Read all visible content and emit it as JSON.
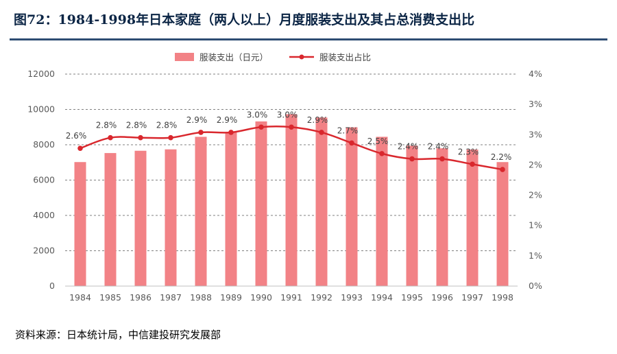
{
  "page": {
    "title": "图72：1984-1998年日本家庭（两人以上）月度服装支出及其占总消费支出比",
    "source": "资料来源：日本统计局，中信建投研究发展部"
  },
  "colors": {
    "bar": "#f28286",
    "line": "#d9272d",
    "grid": "#7f7f7f",
    "title": "#0b2545"
  },
  "chart_data": {
    "type": "bar+line",
    "title": "1984-1998年日本家庭（两人以上）月度服装支出及其占总消费支出比",
    "categories": [
      "1984",
      "1985",
      "1986",
      "1987",
      "1988",
      "1989",
      "1990",
      "1991",
      "1992",
      "1993",
      "1994",
      "1995",
      "1996",
      "1997",
      "1998"
    ],
    "series": [
      {
        "name": "服装支出（日元）",
        "type": "bar",
        "axis": "left",
        "values": [
          7020,
          7530,
          7660,
          7740,
          8450,
          8700,
          9320,
          9730,
          9540,
          8990,
          8450,
          7950,
          7800,
          7730,
          7020
        ]
      },
      {
        "name": "服装支出占比",
        "type": "line",
        "axis": "right",
        "values": [
          2.6,
          2.8,
          2.8,
          2.8,
          2.9,
          2.9,
          3.0,
          3.0,
          2.9,
          2.7,
          2.5,
          2.4,
          2.4,
          2.3,
          2.2
        ],
        "labels": [
          "2.6%",
          "2.8%",
          "2.8%",
          "2.8%",
          "2.9%",
          "2.9%",
          "3.0%",
          "3.0%",
          "2.9%",
          "2.7%",
          "2.5%",
          "2.4%",
          "2.4%",
          "2.3%",
          "2.2%"
        ]
      }
    ],
    "y_left": {
      "min": 0,
      "max": 12000,
      "ticks": [
        "0",
        "2000",
        "4000",
        "6000",
        "8000",
        "10000",
        "12000"
      ]
    },
    "y_right": {
      "min": 0,
      "max": 4,
      "ticks": [
        "0%",
        "1%",
        "1%",
        "2%",
        "2%",
        "3%",
        "3%",
        "4%"
      ]
    },
    "grid": true,
    "legend_position": "top"
  }
}
